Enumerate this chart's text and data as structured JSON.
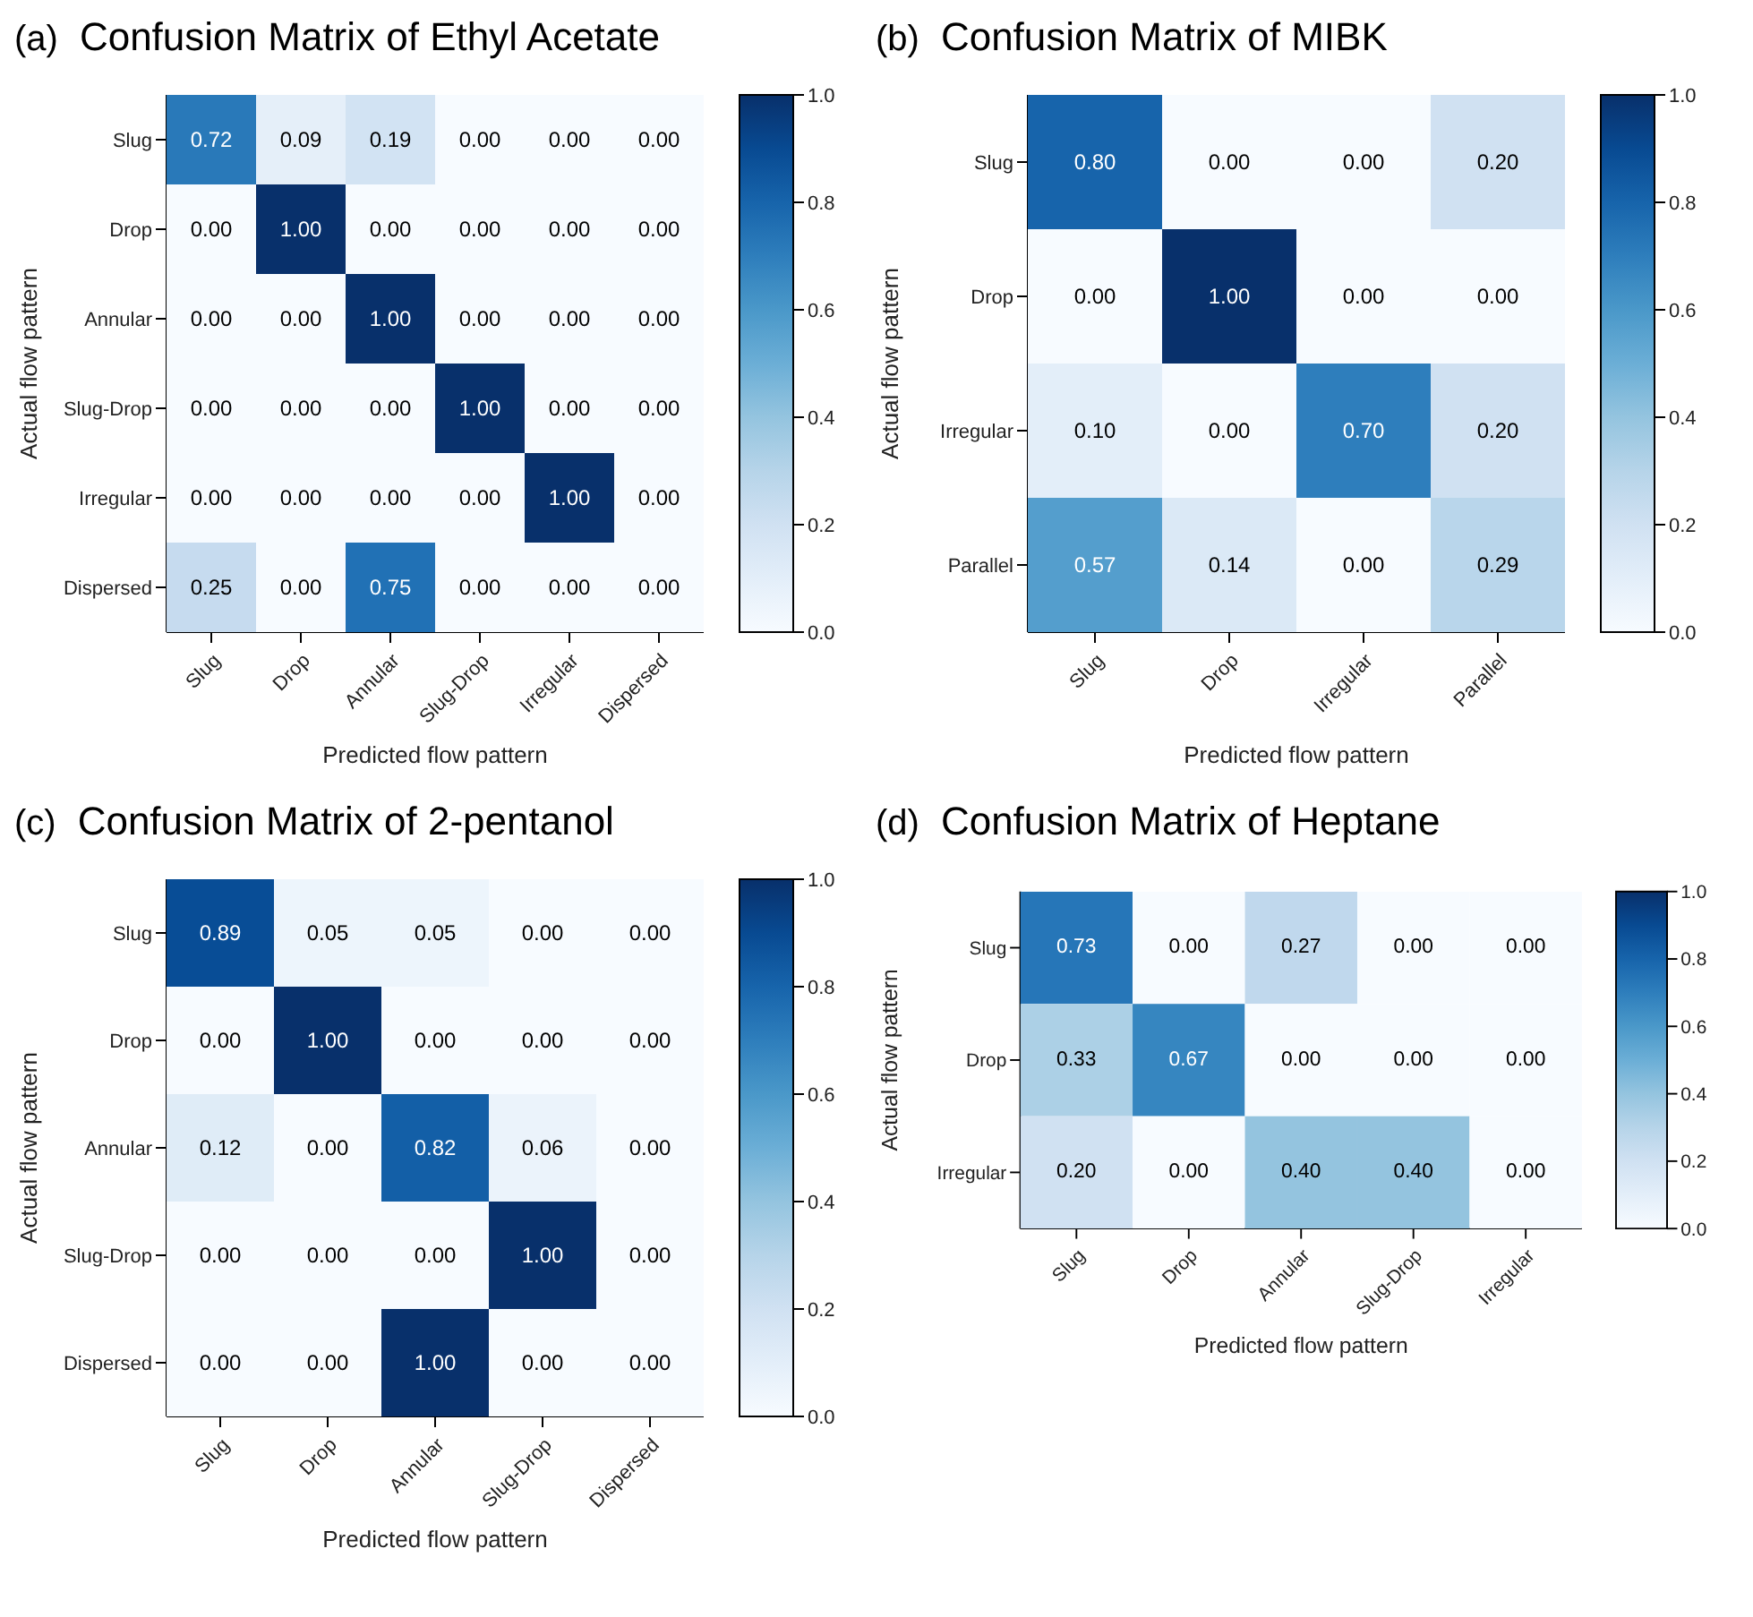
{
  "chart_data": [
    {
      "type": "heatmap",
      "title": "Confusion Matrix of Ethyl Acetate",
      "annotations": [
        "(a)"
      ],
      "xlabel": "Predicted flow pattern",
      "ylabel": "Actual flow pattern",
      "categories": [
        "Slug",
        "Drop",
        "Annular",
        "Slug-Drop",
        "Irregular",
        "Dispersed"
      ],
      "y_categories": [
        "Slug",
        "Drop",
        "Annular",
        "Slug-Drop",
        "Irregular",
        "Dispersed"
      ],
      "cells": [
        [
          0.72,
          0.09,
          0.19,
          0,
          0,
          0
        ],
        [
          0,
          1,
          0,
          0,
          0,
          0
        ],
        [
          0,
          0,
          1,
          0,
          0,
          0
        ],
        [
          0,
          0,
          0,
          1,
          0,
          0
        ],
        [
          0,
          0,
          0,
          0,
          1,
          0
        ],
        [
          0.25,
          0,
          0.75,
          0,
          0,
          0
        ]
      ],
      "cell_labels": [
        [
          "0.72",
          "0.09",
          "0.19",
          "0.00",
          "0.00",
          "0.00"
        ],
        [
          "0.00",
          "1.00",
          "0.00",
          "0.00",
          "0.00",
          "0.00"
        ],
        [
          "0.00",
          "0.00",
          "1.00",
          "0.00",
          "0.00",
          "0.00"
        ],
        [
          "0.00",
          "0.00",
          "0.00",
          "1.00",
          "0.00",
          "0.00"
        ],
        [
          "0.00",
          "0.00",
          "0.00",
          "0.00",
          "1.00",
          "0.00"
        ],
        [
          "0.25",
          "0.00",
          "0.75",
          "0.00",
          "0.00",
          "0.00"
        ]
      ],
      "clim": [
        0,
        1
      ],
      "cticks": [
        {
          "value": 0,
          "label": "0.0"
        },
        {
          "value": 0.2,
          "label": "0.2"
        },
        {
          "value": 0.4,
          "label": "0.4"
        },
        {
          "value": 0.6,
          "label": "0.6"
        },
        {
          "value": 0.8,
          "label": "0.8"
        },
        {
          "value": 1,
          "label": "1.0"
        }
      ]
    },
    {
      "type": "heatmap",
      "title": "Confusion Matrix of MIBK",
      "annotations": [
        "(b)"
      ],
      "xlabel": "Predicted flow pattern",
      "ylabel": "Actual flow pattern",
      "categories": [
        "Slug",
        "Drop",
        "Irregular",
        "Parallel"
      ],
      "y_categories": [
        "Slug",
        "Drop",
        "Irregular",
        "Parallel"
      ],
      "cells": [
        [
          0.8,
          0,
          0,
          0.2
        ],
        [
          0,
          1,
          0,
          0
        ],
        [
          0.1,
          0,
          0.7,
          0.2
        ],
        [
          0.57,
          0.14,
          0,
          0.29
        ]
      ],
      "cell_labels": [
        [
          "0.80",
          "0.00",
          "0.00",
          "0.20"
        ],
        [
          "0.00",
          "1.00",
          "0.00",
          "0.00"
        ],
        [
          "0.10",
          "0.00",
          "0.70",
          "0.20"
        ],
        [
          "0.57",
          "0.14",
          "0.00",
          "0.29"
        ]
      ],
      "clim": [
        0,
        1
      ],
      "cticks": [
        {
          "value": 0,
          "label": "0.0"
        },
        {
          "value": 0.2,
          "label": "0.2"
        },
        {
          "value": 0.4,
          "label": "0.4"
        },
        {
          "value": 0.6,
          "label": "0.6"
        },
        {
          "value": 0.8,
          "label": "0.8"
        },
        {
          "value": 1,
          "label": "1.0"
        }
      ]
    },
    {
      "type": "heatmap",
      "title": "Confusion Matrix of 2-pentanol",
      "annotations": [
        "(c)"
      ],
      "xlabel": "Predicted flow pattern",
      "ylabel": "Actual flow pattern",
      "categories": [
        "Slug",
        "Drop",
        "Annular",
        "Slug-Drop",
        "Dispersed"
      ],
      "y_categories": [
        "Slug",
        "Drop",
        "Annular",
        "Slug-Drop",
        "Dispersed"
      ],
      "cells": [
        [
          0.89,
          0.05,
          0.05,
          0,
          0
        ],
        [
          0,
          1,
          0,
          0,
          0
        ],
        [
          0.12,
          0,
          0.82,
          0.06,
          0
        ],
        [
          0,
          0,
          0,
          1,
          0
        ],
        [
          0,
          0,
          1,
          0,
          0
        ]
      ],
      "cell_labels": [
        [
          "0.89",
          "0.05",
          "0.05",
          "0.00",
          "0.00"
        ],
        [
          "0.00",
          "1.00",
          "0.00",
          "0.00",
          "0.00"
        ],
        [
          "0.12",
          "0.00",
          "0.82",
          "0.06",
          "0.00"
        ],
        [
          "0.00",
          "0.00",
          "0.00",
          "1.00",
          "0.00"
        ],
        [
          "0.00",
          "0.00",
          "1.00",
          "0.00",
          "0.00"
        ]
      ],
      "clim": [
        0,
        1
      ],
      "cticks": [
        {
          "value": 0,
          "label": "0.0"
        },
        {
          "value": 0.2,
          "label": "0.2"
        },
        {
          "value": 0.4,
          "label": "0.4"
        },
        {
          "value": 0.6,
          "label": "0.6"
        },
        {
          "value": 0.8,
          "label": "0.8"
        },
        {
          "value": 1,
          "label": "1.0"
        }
      ]
    },
    {
      "type": "heatmap",
      "title": "Confusion Matrix of Heptane",
      "annotations": [
        "(d)"
      ],
      "xlabel": "Predicted flow pattern",
      "ylabel": "Actual flow pattern",
      "categories": [
        "Slug",
        "Drop",
        "Annular",
        "Slug-Drop",
        "Irregular"
      ],
      "y_categories": [
        "Slug",
        "Drop",
        "Irregular"
      ],
      "cells": [
        [
          0.73,
          0,
          0.27,
          0,
          0
        ],
        [
          0.33,
          0.67,
          0,
          0,
          0
        ],
        [
          0.2,
          0,
          0.4,
          0.4,
          0
        ]
      ],
      "cell_labels": [
        [
          "0.73",
          "0.00",
          "0.27",
          "0.00",
          "0.00"
        ],
        [
          "0.33",
          "0.67",
          "0.00",
          "0.00",
          "0.00"
        ],
        [
          "0.20",
          "0.00",
          "0.40",
          "0.40",
          "0.00"
        ]
      ],
      "clim": [
        0,
        1
      ],
      "cticks": [
        {
          "value": 0,
          "label": "0.0"
        },
        {
          "value": 0.2,
          "label": "0.2"
        },
        {
          "value": 0.4,
          "label": "0.4"
        },
        {
          "value": 0.6,
          "label": "0.6"
        },
        {
          "value": 0.8,
          "label": "0.8"
        },
        {
          "value": 1,
          "label": "1.0"
        }
      ]
    }
  ]
}
